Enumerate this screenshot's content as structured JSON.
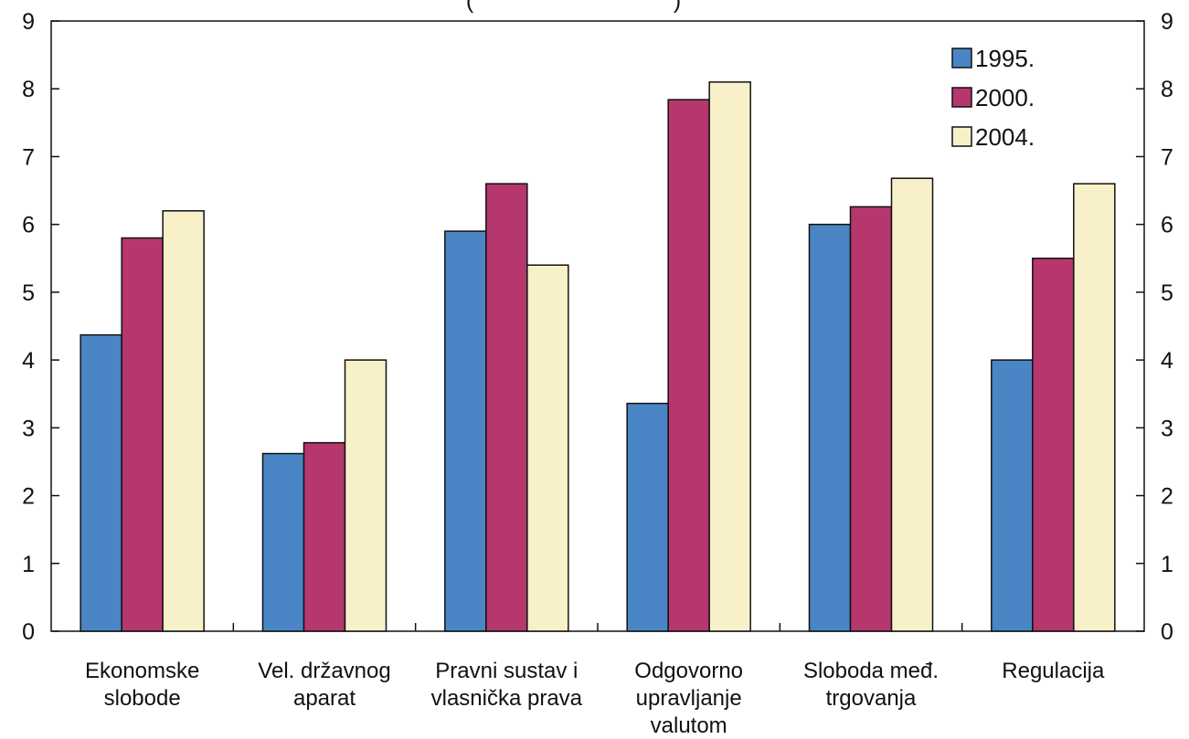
{
  "chart_data": {
    "type": "bar",
    "categories": [
      [
        "Ekonomske",
        "slobode"
      ],
      [
        "Vel. državnog",
        "aparat"
      ],
      [
        "Pravni sustav i",
        "vlasnička prava"
      ],
      [
        "Odgovorno",
        "upravljanje",
        "valutom"
      ],
      [
        "Sloboda međ.",
        "trgovanja"
      ],
      [
        "Regulacija"
      ]
    ],
    "series": [
      {
        "name": "1995.",
        "color": "#4a86c5",
        "values": [
          4.37,
          2.62,
          5.9,
          3.36,
          6.0,
          4.0
        ]
      },
      {
        "name": "2000.",
        "color": "#b5376e",
        "values": [
          5.8,
          2.78,
          6.6,
          7.84,
          6.26,
          5.5
        ]
      },
      {
        "name": "2004.",
        "color": "#f8f0c8",
        "values": [
          6.2,
          4.0,
          5.4,
          8.1,
          6.68,
          6.6
        ]
      }
    ],
    "title_fragment": "(",
    "title_fragment_end": ")",
    "ylim": [
      0,
      9
    ],
    "yticks": [
      "0",
      "1",
      "2",
      "3",
      "4",
      "5",
      "6",
      "7",
      "8",
      "9"
    ],
    "legend_position": "top-right",
    "grid": false
  }
}
